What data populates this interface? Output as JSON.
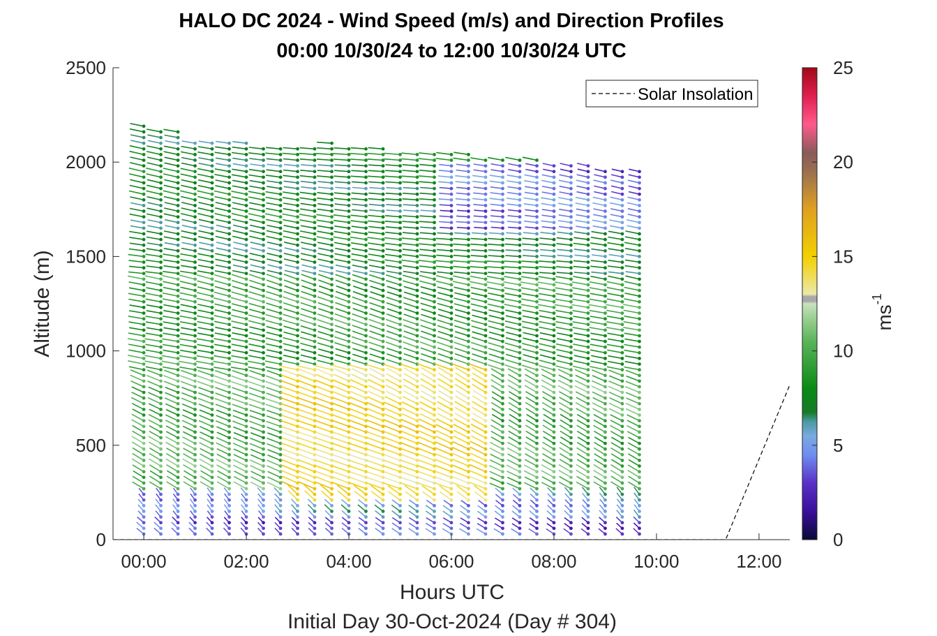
{
  "chart_data": {
    "type": "wind-barb-profile",
    "title_line1": "HALO DC 2024 - Wind Speed (m/s) and Direction Profiles",
    "title_line2": "00:00 10/30/24 to 12:00 10/30/24  UTC",
    "xlabel": "Hours UTC",
    "xlabel2": "Initial Day 30-Oct-2024 (Day # 304)",
    "ylabel": "Altitude (m)",
    "x_unit": "hours UTC",
    "xlim": [
      -0.6,
      12.6
    ],
    "ylim": [
      0,
      2500
    ],
    "x_ticks": [
      0,
      2,
      4,
      6,
      8,
      10,
      12
    ],
    "x_tick_labels": [
      "00:00",
      "02:00",
      "04:00",
      "06:00",
      "08:00",
      "10:00",
      "12:00"
    ],
    "y_ticks": [
      0,
      500,
      1000,
      1500,
      2000,
      2500
    ],
    "y_tick_labels": [
      "0",
      "500",
      "1000",
      "1500",
      "2000",
      "2500"
    ],
    "colorbar": {
      "label": "ms",
      "label_exponent": "-1",
      "range": [
        0,
        25
      ],
      "ticks": [
        0,
        5,
        10,
        15,
        20,
        25
      ],
      "tick_labels": [
        "0",
        "5",
        "10",
        "15",
        "20",
        "25"
      ]
    },
    "legend": {
      "entries": [
        "Solar Insolation"
      ],
      "location": "top-right",
      "line_style": "dashed"
    },
    "profile_times_hours": [
      0,
      0.333,
      0.667,
      1,
      1.333,
      1.667,
      2,
      2.333,
      2.667,
      3,
      3.333,
      3.667,
      4,
      4.333,
      4.667,
      5,
      5.333,
      5.667,
      6,
      6.333,
      6.667,
      7,
      7.333,
      7.667,
      8,
      8.333,
      8.667,
      9,
      9.333,
      9.667
    ],
    "profile_top_altitude_m": [
      2190,
      2180,
      2170,
      2120,
      2110,
      2110,
      2100,
      2090,
      2080,
      2080,
      2090,
      2100,
      2090,
      2080,
      2070,
      2060,
      2060,
      2050,
      2040,
      2040,
      2030,
      2020,
      2020,
      2010,
      2000,
      1990,
      1980,
      1970,
      1960,
      1960
    ],
    "range_gate_spacing_m": 30,
    "layers": [
      {
        "alt_m": [
          0,
          100
        ],
        "speed_ms": 3.5,
        "dir_deg": 325
      },
      {
        "alt_m": [
          100,
          250
        ],
        "speed_ms": 5.0,
        "dir_deg": 330
      },
      {
        "alt_m": [
          250,
          900
        ],
        "speed_ms": 10.0,
        "dir_deg": 310
      },
      {
        "alt_m": [
          900,
          1400
        ],
        "speed_ms": 9.0,
        "dir_deg": 295
      },
      {
        "alt_m": [
          1400,
          2200
        ],
        "speed_ms": 7.5,
        "dir_deg": 285
      }
    ],
    "jet_core": {
      "time_hours": [
        2.7,
        6.7
      ],
      "alt_m": [
        200,
        900
      ],
      "speed_ms": 14.5
    },
    "upper_weak_layer": {
      "alt_m": [
        1650,
        2000
      ],
      "time_hours": [
        6.0,
        9.7
      ],
      "speed_ms": 4.0
    },
    "solar_insolation": {
      "x": [
        -0.6,
        11.35,
        12.6
      ],
      "y": [
        0,
        0,
        820
      ]
    },
    "colors": {
      "low_speed": "#3a0f9a",
      "mid_speed": "#0a8a14",
      "jet_speed": "#f2c800",
      "max_speed": "#b00b1e",
      "axis": "#262626"
    }
  }
}
